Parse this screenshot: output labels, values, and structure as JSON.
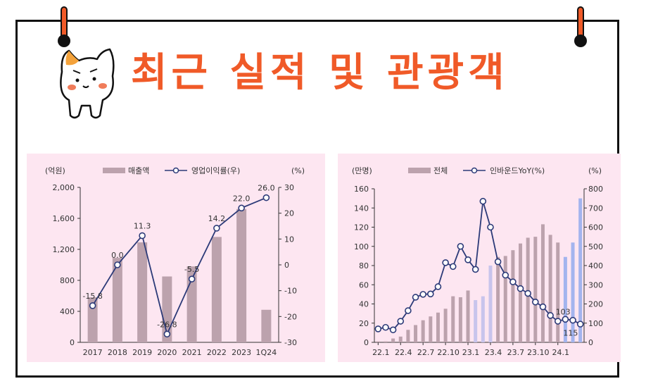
{
  "header": {
    "title": "최근 실적 및 관광객"
  },
  "chart_data": [
    {
      "type": "bar",
      "units_left": "(억원)",
      "units_right": "(%)",
      "legend": {
        "bar": "매출액",
        "line": "영업이익률(우)"
      },
      "categories": [
        "2017",
        "2018",
        "2019",
        "2020",
        "2021",
        "2022",
        "2023",
        "1Q24"
      ],
      "series": [
        {
          "name": "매출액",
          "type": "bar",
          "axis": "left",
          "values": [
            580,
            1090,
            1290,
            850,
            980,
            1360,
            1720,
            420
          ]
        },
        {
          "name": "영업이익률(우)",
          "type": "line",
          "axis": "right",
          "values": [
            -15.8,
            0.0,
            11.3,
            -26.8,
            -5.5,
            14.2,
            22.0,
            26.0
          ]
        }
      ],
      "data_labels": [
        "-15.8",
        "0.0",
        "11.3",
        "-26.8",
        "-5.5",
        "14.2",
        "22.0",
        "26.0"
      ],
      "ylim": [
        0,
        2000
      ],
      "y2lim": [
        -30,
        30
      ],
      "yticks": [
        "0",
        "400",
        "800",
        "1,200",
        "1,600",
        "2,000"
      ],
      "y2ticks": [
        "-30",
        "-20",
        "-10",
        "0",
        "10",
        "20",
        "30"
      ],
      "bar_color": "#bca2ad",
      "line_color": "#2c3a78"
    },
    {
      "type": "bar",
      "units_left": "(만명)",
      "units_right": "(%)",
      "legend": {
        "bar": "전체",
        "line": "인바운드YoY(%)"
      },
      "x_labels": [
        "22.1",
        "22.4",
        "22.7",
        "22.10",
        "23.1",
        "23.4",
        "23.7",
        "23.10",
        "24.1"
      ],
      "months": 28,
      "series": [
        {
          "name": "전체",
          "type": "bar",
          "axis": "left",
          "values": [
            1,
            1,
            4,
            6,
            13,
            18,
            23,
            27,
            31,
            35,
            48,
            47,
            54,
            44,
            48,
            80,
            89,
            90,
            96,
            103,
            109,
            110,
            123,
            112,
            104,
            89,
            104,
            150
          ]
        },
        {
          "name": "인바운드YoY(%)",
          "type": "line",
          "axis": "right",
          "values": [
            70,
            78,
            65,
            110,
            165,
            235,
            250,
            252,
            290,
            415,
            395,
            500,
            430,
            380,
            735,
            600,
            420,
            350,
            315,
            280,
            255,
            210,
            185,
            140,
            110,
            120,
            115,
            95
          ]
        }
      ],
      "bar_colors": [
        "#bca2ad",
        "#bca2ad",
        "#bca2ad",
        "#bca2ad",
        "#bca2ad",
        "#bca2ad",
        "#bca2ad",
        "#bca2ad",
        "#bca2ad",
        "#bca2ad",
        "#bca2ad",
        "#bca2ad",
        "#bca2ad",
        "#c8c4ec",
        "#c8c4ec",
        "#c8c4ec",
        "#bca2ad",
        "#bca2ad",
        "#bca2ad",
        "#bca2ad",
        "#bca2ad",
        "#bca2ad",
        "#bca2ad",
        "#bca2ad",
        "#bca2ad",
        "#a3b4ee",
        "#a3b4ee",
        "#a3b4ee"
      ],
      "annotations": [
        "103",
        "115"
      ],
      "ylim": [
        0,
        160
      ],
      "y2lim": [
        0,
        800
      ],
      "yticks": [
        "0",
        "20",
        "40",
        "60",
        "80",
        "100",
        "120",
        "140",
        "160"
      ],
      "y2ticks": [
        "0",
        "100",
        "200",
        "300",
        "400",
        "500",
        "600",
        "700",
        "800"
      ],
      "line_color": "#2c3a78"
    }
  ]
}
